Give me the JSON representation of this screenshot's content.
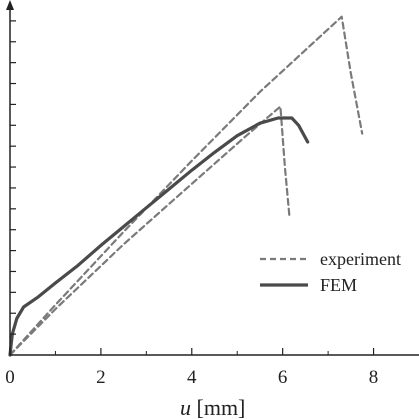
{
  "chart_data": {
    "type": "line",
    "title": "",
    "xlabel_var": "u",
    "xlabel_unit": " [mm]",
    "ylabel": "",
    "xlim": [
      0,
      9
    ],
    "ylim": [
      0,
      17
    ],
    "x_ticks": [
      0,
      2,
      4,
      6,
      8
    ],
    "x_tick_labels": [
      "0",
      "2",
      "4",
      "6",
      "8"
    ],
    "y_ticks": [
      1,
      2,
      3,
      4,
      5,
      6,
      7,
      8,
      9,
      10,
      11,
      12,
      13,
      14,
      15,
      16
    ],
    "y_tick_labels_shown": false,
    "grid": false,
    "legend_position": "lower-right",
    "series": [
      {
        "name": "experiment",
        "style": "dashed",
        "color": "#7a7a7a",
        "segments": [
          [
            [
              0,
              0
            ],
            [
              1.0,
              2.4
            ],
            [
              2.5,
              5.9
            ],
            [
              4.0,
              9.3
            ],
            [
              5.5,
              12.6
            ],
            [
              7.3,
              16.2
            ],
            [
              7.5,
              13.5
            ],
            [
              7.75,
              10.6
            ]
          ],
          [
            [
              0,
              0
            ],
            [
              1.0,
              2.2
            ],
            [
              2.5,
              5.3
            ],
            [
              4.0,
              8.2
            ],
            [
              5.2,
              10.5
            ],
            [
              5.95,
              11.9
            ],
            [
              6.05,
              9.0
            ],
            [
              6.15,
              6.6
            ]
          ]
        ]
      },
      {
        "name": "FEM",
        "style": "solid",
        "color": "#4a4a4a",
        "segments": [
          [
            [
              0,
              0
            ],
            [
              0.05,
              1.0
            ],
            [
              0.15,
              1.75
            ],
            [
              0.3,
              2.3
            ],
            [
              0.6,
              2.75
            ],
            [
              1.0,
              3.45
            ],
            [
              1.5,
              4.3
            ],
            [
              2.0,
              5.25
            ],
            [
              2.5,
              6.15
            ],
            [
              3.0,
              7.05
            ],
            [
              3.5,
              7.95
            ],
            [
              4.0,
              8.85
            ],
            [
              4.5,
              9.7
            ],
            [
              5.0,
              10.5
            ],
            [
              5.5,
              11.1
            ],
            [
              5.9,
              11.35
            ],
            [
              6.2,
              11.35
            ],
            [
              6.35,
              11.0
            ],
            [
              6.55,
              10.2
            ]
          ]
        ]
      }
    ]
  }
}
